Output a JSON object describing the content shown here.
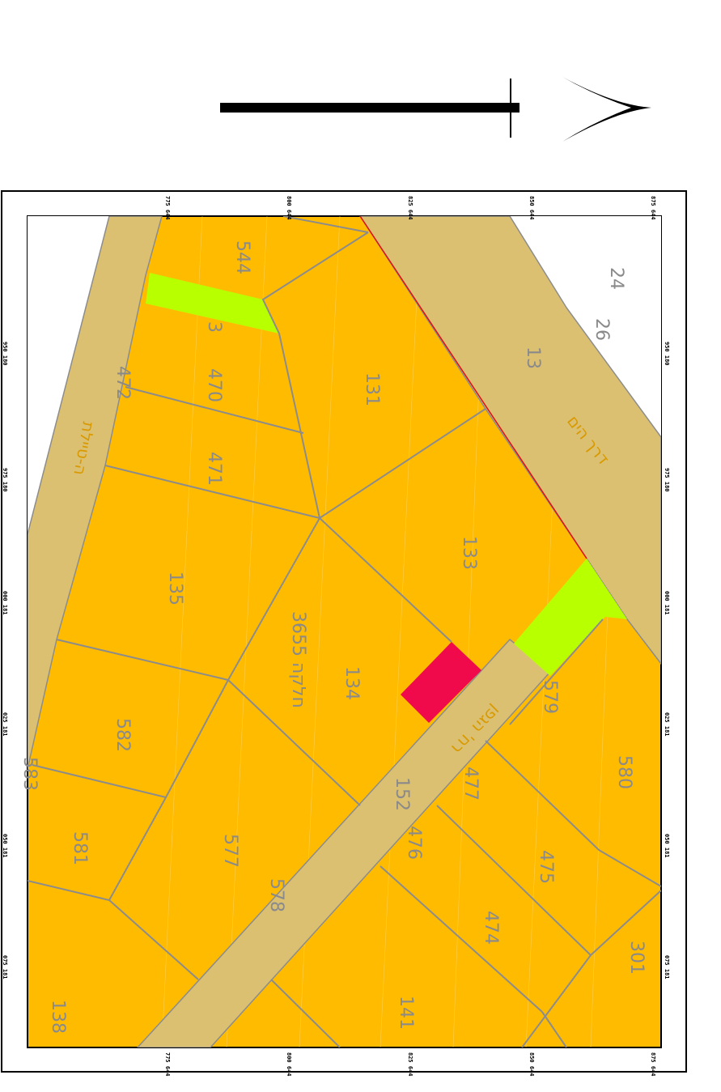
{
  "colors": {
    "residential": "#ffbb00",
    "road": "#dcc072",
    "green": "#b8ff00",
    "highlight": "#f00a4b",
    "parcel_line": "#8c8c8c",
    "street_text": "#d89a00",
    "parcel_text": "#8a8a8a"
  },
  "icons": {
    "north_arrow": "north-arrow-icon"
  },
  "parcels": [
    {
      "id": "p24",
      "text": "24"
    },
    {
      "id": "p26",
      "text": "26"
    },
    {
      "id": "p13a",
      "text": "13"
    },
    {
      "id": "p544",
      "text": "544"
    },
    {
      "id": "p131",
      "text": "131"
    },
    {
      "id": "p3",
      "text": "3"
    },
    {
      "id": "p470",
      "text": "470"
    },
    {
      "id": "p472",
      "text": "472"
    },
    {
      "id": "p471",
      "text": "471"
    },
    {
      "id": "p133",
      "text": "133"
    },
    {
      "id": "p135",
      "text": "135"
    },
    {
      "id": "p3655",
      "text": "3655 חלקה"
    },
    {
      "id": "p134",
      "text": "134"
    },
    {
      "id": "p579",
      "text": "579"
    },
    {
      "id": "p582",
      "text": "582"
    },
    {
      "id": "p583",
      "text": "583"
    },
    {
      "id": "p580",
      "text": "580"
    },
    {
      "id": "p477",
      "text": "477"
    },
    {
      "id": "p152",
      "text": "152"
    },
    {
      "id": "p476",
      "text": "476"
    },
    {
      "id": "p581",
      "text": "581"
    },
    {
      "id": "p577",
      "text": "577"
    },
    {
      "id": "p578",
      "text": "578"
    },
    {
      "id": "p475",
      "text": "475"
    },
    {
      "id": "p474",
      "text": "474"
    },
    {
      "id": "p301",
      "text": "301"
    },
    {
      "id": "p141",
      "text": "141"
    },
    {
      "id": "p138",
      "text": "138"
    }
  ],
  "streets": {
    "derech_hayam": "דרך הים",
    "hatayelet": "ה-טיילת",
    "hagefen": "רח' הגפן"
  },
  "coords_top": [
    "775 644",
    "800 644",
    "825 644",
    "850 644",
    "875 644"
  ],
  "coords_bottom": [
    "775 644",
    "800 644",
    "825 644",
    "850 644",
    "875 644"
  ],
  "coords_left": [
    "950 180",
    "975 180",
    "000 181",
    "025 181",
    "050 181",
    "075 181"
  ],
  "coords_right": [
    "950 180",
    "975 180",
    "000 181",
    "025 181",
    "050 181",
    "075 181"
  ]
}
